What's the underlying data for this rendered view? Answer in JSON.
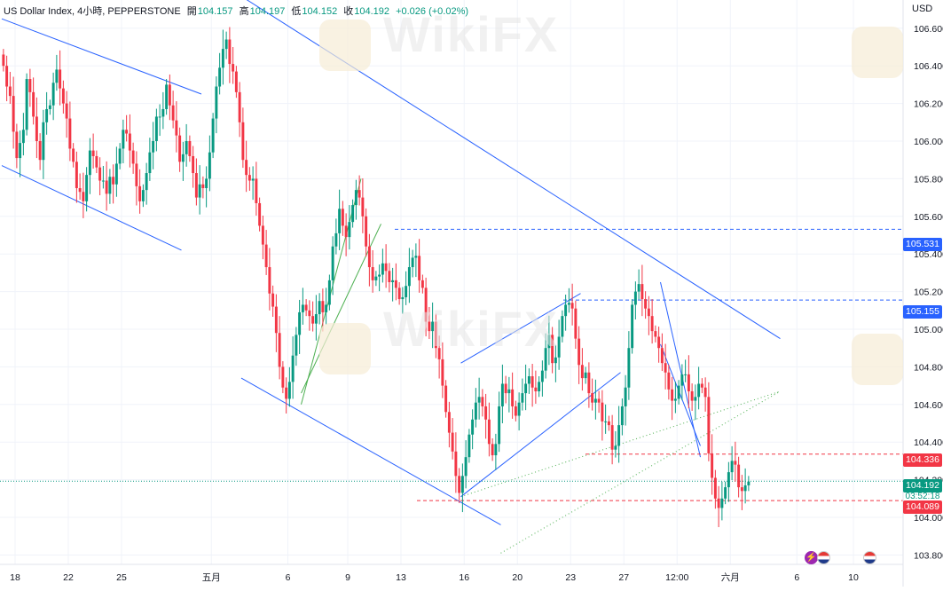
{
  "legend": {
    "symbol": "US Dollar Index, 4小時, PEPPERSTONE",
    "open_label": "開",
    "open": "104.157",
    "high_label": "高",
    "high": "104.197",
    "low_label": "低",
    "low": "104.152",
    "close_label": "收",
    "close": "104.192",
    "change": "+0.026 (+0.02%)"
  },
  "currency": "USD",
  "watermark": "WikiFX",
  "badges": {
    "level1": "105.531",
    "level2": "105.155",
    "level3": "104.336",
    "last": "104.192",
    "countdown": "03:52:18",
    "level4": "104.089"
  },
  "colors": {
    "up": "#089981",
    "down": "#f23645",
    "trendline": "#2962ff",
    "channel": "#4caf50"
  },
  "chart_data": {
    "type": "candlestick",
    "title": "US Dollar Index, 4小時, PEPPERSTONE",
    "ylim": [
      103.75,
      106.75
    ],
    "yticks": [
      103.8,
      104.0,
      104.2,
      104.4,
      104.6,
      104.8,
      105.0,
      105.2,
      105.4,
      105.6,
      105.8,
      106.0,
      106.2,
      106.4,
      106.6
    ],
    "ytick_labels": [
      "103.800",
      "104.000",
      "104.200",
      "104.400",
      "104.600",
      "104.800",
      "105.000",
      "105.200",
      "105.400",
      "105.600",
      "105.800",
      "106.000",
      "106.200",
      "106.400",
      "106.600"
    ],
    "xtick_labels": [
      "18",
      "22",
      "25",
      "五月",
      "6",
      "9",
      "13",
      "16",
      "20",
      "23",
      "27",
      "12:00",
      "六月",
      "6",
      "10"
    ],
    "xtick_index": [
      4,
      20,
      36,
      63,
      86,
      104,
      120,
      139,
      155,
      171,
      187,
      203,
      219,
      239,
      256
    ],
    "closes": [
      106.4,
      106.29,
      106.24,
      106.05,
      105.91,
      105.99,
      106.06,
      106.33,
      106.26,
      106.13,
      106.0,
      105.9,
      106.1,
      106.17,
      106.19,
      106.31,
      106.38,
      106.28,
      106.2,
      106.12,
      105.96,
      105.89,
      105.75,
      105.73,
      105.68,
      105.82,
      105.95,
      105.92,
      105.86,
      105.79,
      105.79,
      105.72,
      105.81,
      105.77,
      105.88,
      105.96,
      106.06,
      106.04,
      105.95,
      105.88,
      105.76,
      105.68,
      105.74,
      105.83,
      105.94,
      106.0,
      106.13,
      106.13,
      106.17,
      106.3,
      106.19,
      106.11,
      106.03,
      105.89,
      105.93,
      106.0,
      105.92,
      105.83,
      105.7,
      105.77,
      105.75,
      105.8,
      105.94,
      106.12,
      106.29,
      106.39,
      106.49,
      106.54,
      106.41,
      106.37,
      106.26,
      106.1,
      105.9,
      105.82,
      105.79,
      105.8,
      105.67,
      105.55,
      105.45,
      105.33,
      105.19,
      105.12,
      104.98,
      104.8,
      104.69,
      104.63,
      104.72,
      104.86,
      104.97,
      105.09,
      105.13,
      105.1,
      105.07,
      105.03,
      105.08,
      105.15,
      105.09,
      105.13,
      105.26,
      105.44,
      105.51,
      105.64,
      105.55,
      105.49,
      105.57,
      105.66,
      105.74,
      105.7,
      105.6,
      105.44,
      105.33,
      105.26,
      105.28,
      105.29,
      105.35,
      105.31,
      105.25,
      105.26,
      105.22,
      105.16,
      105.17,
      105.23,
      105.33,
      105.38,
      105.39,
      105.26,
      105.22,
      105.04,
      104.99,
      105.04,
      104.9,
      104.84,
      104.7,
      104.56,
      104.45,
      104.35,
      104.22,
      104.13,
      104.22,
      104.32,
      104.44,
      104.52,
      104.61,
      104.64,
      104.59,
      104.52,
      104.39,
      104.33,
      104.39,
      104.59,
      104.71,
      104.66,
      104.68,
      104.59,
      104.54,
      104.61,
      104.66,
      104.71,
      104.75,
      104.69,
      104.67,
      104.72,
      104.78,
      104.9,
      104.97,
      104.82,
      104.85,
      104.96,
      105.07,
      105.13,
      105.14,
      105.11,
      104.95,
      104.81,
      104.74,
      104.77,
      104.66,
      104.61,
      104.63,
      104.61,
      104.51,
      104.51,
      104.49,
      104.36,
      104.38,
      104.49,
      104.59,
      104.69,
      104.9,
      105.13,
      105.2,
      105.24,
      105.16,
      105.11,
      105.07,
      104.99,
      104.96,
      104.9,
      104.82,
      104.77,
      104.68,
      104.62,
      104.63,
      104.7,
      104.76,
      104.76,
      104.67,
      104.62,
      104.64,
      104.71,
      104.69,
      104.64,
      104.34,
      104.21,
      104.1,
      104.05,
      104.1,
      104.16,
      104.24,
      104.3,
      104.28,
      104.16,
      104.14,
      104.17,
      104.19
    ],
    "horizontal_levels": [
      105.531,
      105.155,
      104.336,
      104.089,
      104.192
    ],
    "trendlines": [
      {
        "from": [
          "2024-04-15",
          106.65
        ],
        "to": [
          "2024-04-29",
          106.25
        ]
      },
      {
        "from": [
          "2024-04-15",
          105.87
        ],
        "to": [
          "2024-04-26",
          105.42
        ]
      },
      {
        "from": [
          "2024-05-01",
          106.77
        ],
        "to": [
          "2024-06-07",
          104.95
        ]
      },
      {
        "from": [
          "2024-05-01",
          104.74
        ],
        "to": [
          "2024-05-20",
          103.96
        ]
      },
      {
        "from": [
          "2024-05-16",
          104.11
        ],
        "to": [
          "2024-06-07",
          104.67
        ]
      },
      {
        "from": [
          "2024-05-16",
          104.11
        ],
        "to": [
          "2024-05-28",
          104.77
        ]
      },
      {
        "from": [
          "2024-05-16",
          104.82
        ],
        "to": [
          "2024-05-24",
          105.19
        ]
      },
      {
        "from": [
          "2024-05-30",
          105.25
        ],
        "to": [
          "2024-06-03",
          104.32
        ]
      },
      {
        "from": [
          "2024-05-30",
          104.92
        ],
        "to": [
          "2024-06-03",
          104.38
        ]
      },
      {
        "from": [
          "2024-05-06",
          104.6
        ],
        "to": [
          "2024-05-09",
          105.8
        ]
      },
      {
        "from": [
          "2024-05-06",
          104.66
        ],
        "to": [
          "2024-05-10",
          105.56
        ]
      },
      {
        "from": [
          "2024-05-20",
          103.81
        ],
        "to": [
          "2024-06-07",
          104.67
        ]
      }
    ]
  }
}
